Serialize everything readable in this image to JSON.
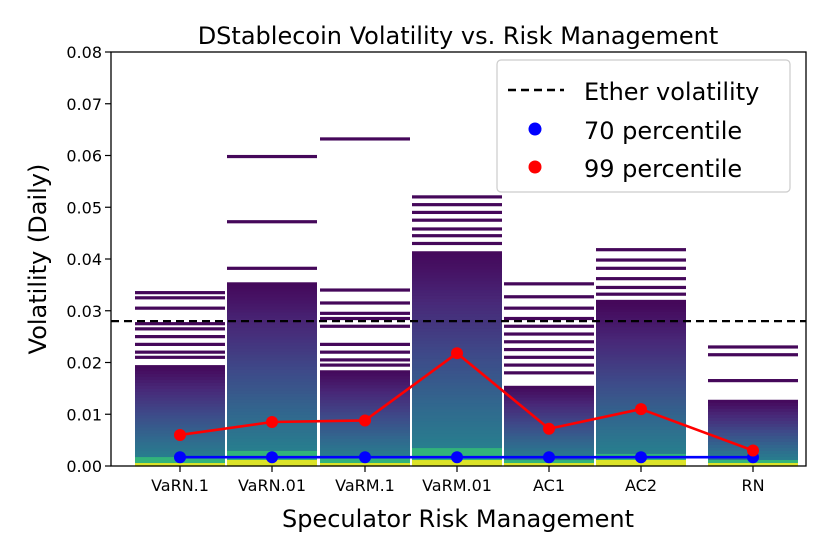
{
  "chart_data": {
    "type": "line",
    "title": "DStablecoin Volatility vs. Risk Management",
    "xlabel": "Speculator Risk Management",
    "ylabel": "Volatility (Daily)",
    "ylim": [
      0,
      0.08
    ],
    "yticks": [
      "0.00",
      "0.01",
      "0.02",
      "0.03",
      "0.04",
      "0.05",
      "0.06",
      "0.07",
      "0.08"
    ],
    "categories": [
      "VaRN.1",
      "VaRN.01",
      "VaRM.1",
      "VaRM.01",
      "AC1",
      "AC2",
      "RN"
    ],
    "reference_line": {
      "name": "Ether volatility",
      "value": 0.028,
      "color": "#000000"
    },
    "series": [
      {
        "name": "70 percentile",
        "color": "#0000ff",
        "values": [
          0.0017,
          0.0017,
          0.0017,
          0.0017,
          0.0017,
          0.0017,
          0.0017
        ]
      },
      {
        "name": "99 percentile",
        "color": "#ff0000",
        "values": [
          0.006,
          0.0085,
          0.0088,
          0.0218,
          0.0072,
          0.011,
          0.003
        ]
      }
    ],
    "distribution": {
      "colormap": "viridis",
      "columns": [
        {
          "category": "VaRN.1",
          "dense_top": 0.0195,
          "outliers": [
            0.0335,
            0.0325,
            0.0305,
            0.0275,
            0.0265,
            0.025,
            0.0235,
            0.022,
            0.021
          ]
        },
        {
          "category": "VaRN.01",
          "dense_top": 0.0355,
          "outliers": [
            0.0598,
            0.0472,
            0.0382
          ]
        },
        {
          "category": "VaRM.1",
          "dense_top": 0.0185,
          "outliers": [
            0.0632,
            0.034,
            0.0315,
            0.0295,
            0.0285,
            0.027,
            0.0235,
            0.022,
            0.0205,
            0.0195
          ]
        },
        {
          "category": "VaRM.01",
          "dense_top": 0.0415,
          "outliers": [
            0.052,
            0.0505,
            0.049,
            0.0475,
            0.0458,
            0.0445,
            0.043
          ]
        },
        {
          "category": "AC1",
          "dense_top": 0.0155,
          "outliers": [
            0.0352,
            0.0327,
            0.0305,
            0.0285,
            0.027,
            0.0255,
            0.024,
            0.0225,
            0.021,
            0.0195,
            0.018
          ]
        },
        {
          "category": "AC2",
          "dense_top": 0.0315,
          "outliers": [
            0.0418,
            0.0398,
            0.0382,
            0.0362,
            0.0345,
            0.0332,
            0.0318
          ]
        },
        {
          "category": "RN",
          "dense_top": 0.0128,
          "outliers": [
            0.023,
            0.0215,
            0.0165
          ]
        }
      ]
    },
    "legend": {
      "placement": "top-right",
      "entries": [
        "Ether volatility",
        "70 percentile",
        "99 percentile"
      ]
    }
  }
}
